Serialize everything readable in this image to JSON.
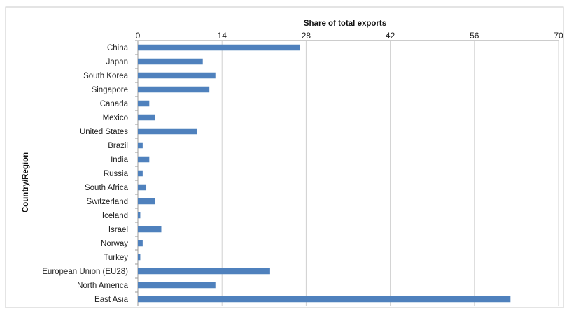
{
  "chart_data": {
    "type": "bar",
    "orientation": "horizontal",
    "title": "",
    "xlabel": "Share of total exports",
    "ylabel": "Country/Region",
    "xlim": [
      0,
      70
    ],
    "xticks": [
      "0",
      "14",
      "28",
      "42",
      "56",
      "70"
    ],
    "x_axis_position": "top",
    "grid": true,
    "legend": "none",
    "categories": [
      "China",
      "Japan",
      "South Korea",
      "Singapore",
      "Canada",
      "Mexico",
      "United States",
      "Brazil",
      "India",
      "Russia",
      "South Africa",
      "Switzerland",
      "Iceland",
      "Israel",
      "Norway",
      "Turkey",
      "European Union (EU28)",
      "North America",
      "East Asia"
    ],
    "values": [
      27,
      10.8,
      12.9,
      11.9,
      1.9,
      2.8,
      9.9,
      0.8,
      1.9,
      0.8,
      1.4,
      2.8,
      0.4,
      3.9,
      0.8,
      0.4,
      22.0,
      12.9,
      62.0
    ],
    "colors": {
      "bar": "#4f81bd",
      "grid": "#d0d0d0",
      "frame": "#c8c8c8"
    }
  }
}
